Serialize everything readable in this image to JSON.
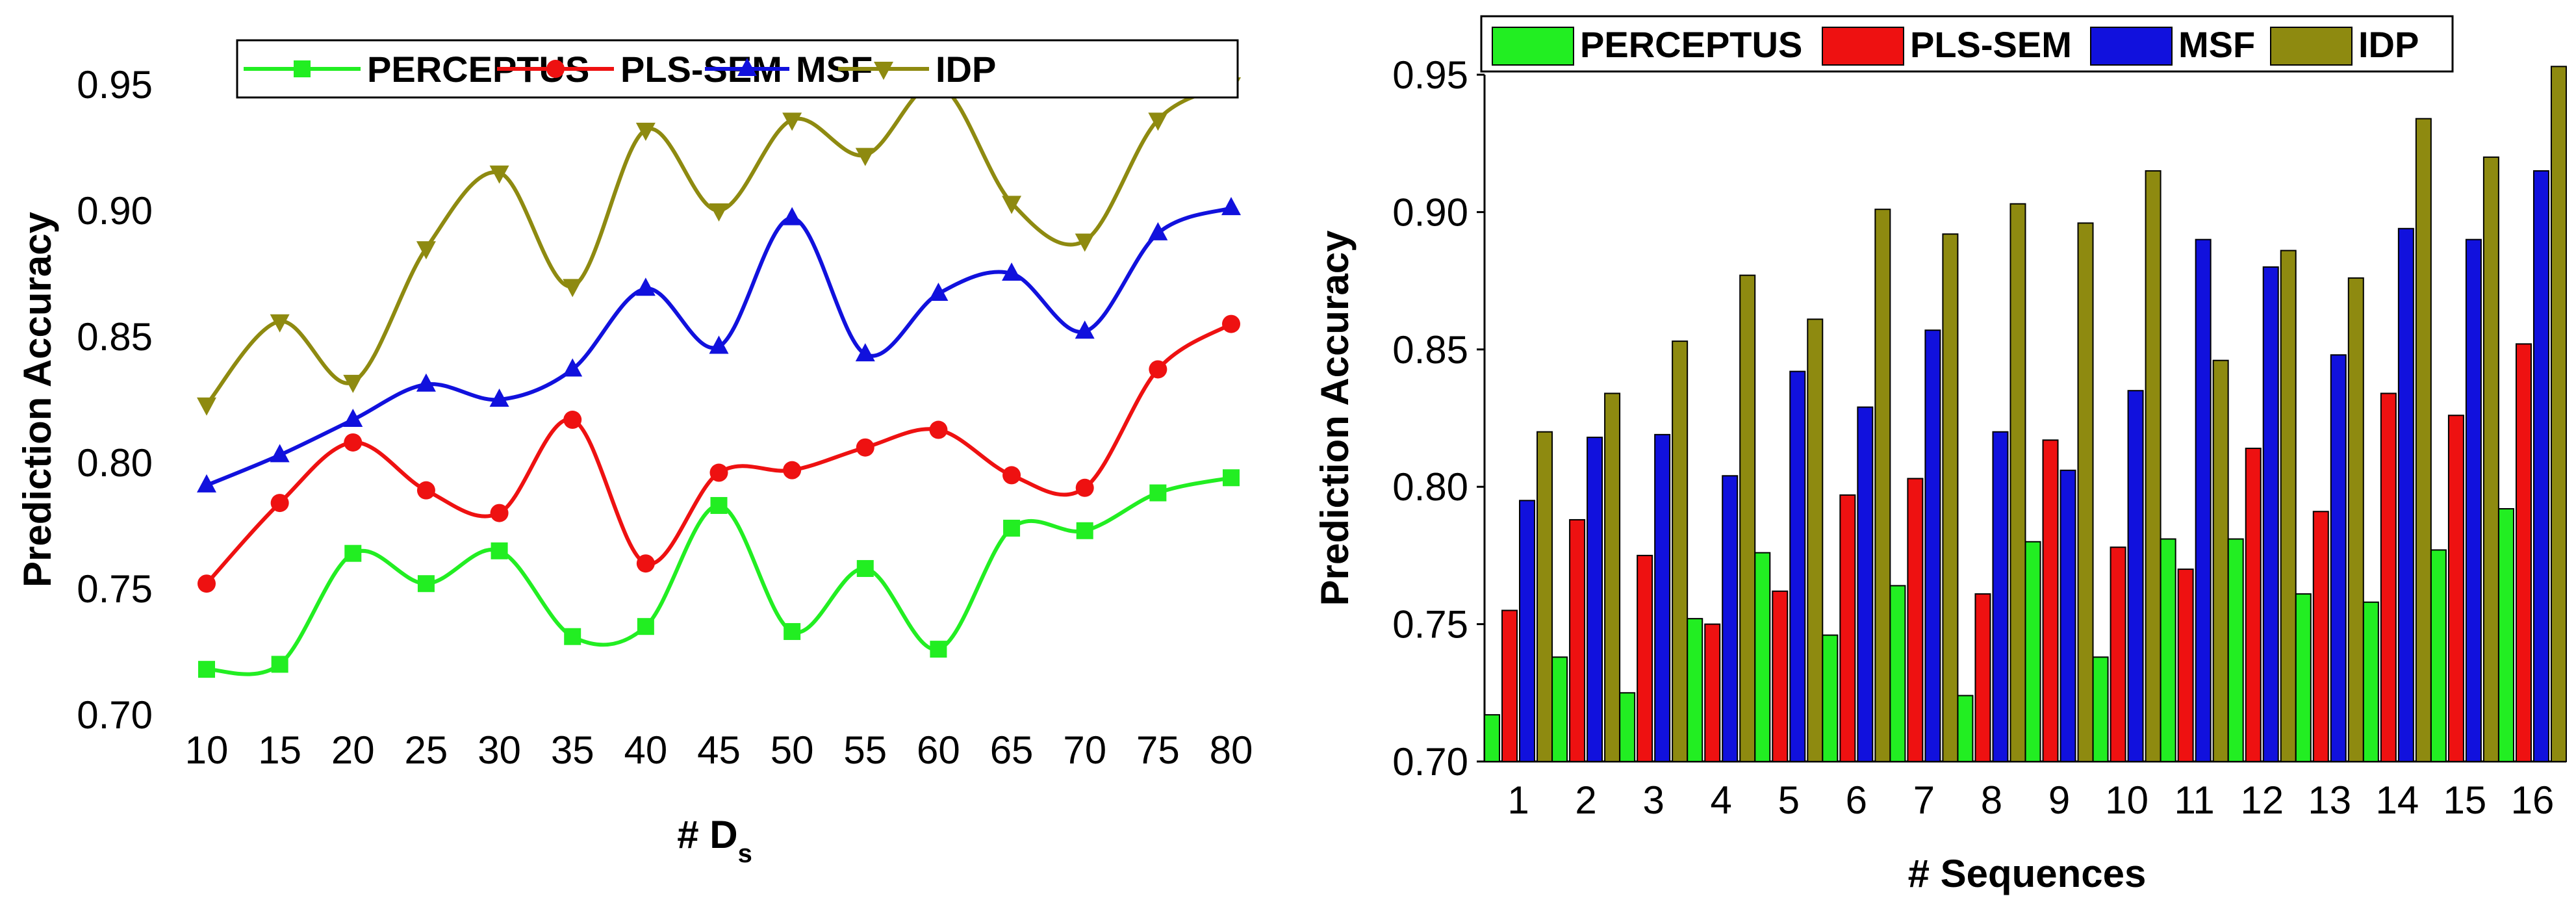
{
  "chart_data": [
    {
      "type": "line",
      "title": "",
      "xlabel": "# D",
      "xlabel_subscript": "s",
      "ylabel": "Prediction Accuracy",
      "ylim": [
        0.7,
        0.95
      ],
      "yticks": [
        "0.70",
        "0.75",
        "0.80",
        "0.85",
        "0.90",
        "0.95"
      ],
      "x": [
        "10",
        "15",
        "20",
        "25",
        "30",
        "35",
        "40",
        "45",
        "50",
        "55",
        "60",
        "65",
        "70",
        "75",
        "80"
      ],
      "legend_position": "top",
      "series": [
        {
          "name": "PERCEPTUS",
          "color": "#22ee22",
          "marker": "square",
          "values": [
            0.718,
            0.72,
            0.764,
            0.752,
            0.765,
            0.731,
            0.735,
            0.783,
            0.733,
            0.758,
            0.726,
            0.774,
            0.773,
            0.788,
            0.794
          ]
        },
        {
          "name": "PLS-SEM",
          "color": "#ee1111",
          "marker": "circle",
          "values": [
            0.752,
            0.784,
            0.808,
            0.789,
            0.78,
            0.817,
            0.76,
            0.796,
            0.797,
            0.806,
            0.813,
            0.795,
            0.79,
            0.837,
            0.855
          ]
        },
        {
          "name": "MSF",
          "color": "#1111dd",
          "marker": "triangle-up",
          "values": [
            0.791,
            0.803,
            0.817,
            0.831,
            0.825,
            0.837,
            0.869,
            0.846,
            0.897,
            0.843,
            0.867,
            0.875,
            0.852,
            0.891,
            0.901
          ]
        },
        {
          "name": "IDP",
          "color": "#8e8a10",
          "marker": "triangle-down",
          "values": [
            0.823,
            0.856,
            0.832,
            0.885,
            0.915,
            0.87,
            0.932,
            0.9,
            0.936,
            0.922,
            0.95,
            0.903,
            0.888,
            0.936,
            0.95
          ]
        }
      ]
    },
    {
      "type": "bar",
      "title": "",
      "xlabel": "# Sequences",
      "ylabel": "Prediction Accuracy",
      "ylim": [
        0.7,
        0.95
      ],
      "yticks": [
        "0.70",
        "0.75",
        "0.80",
        "0.85",
        "0.90",
        "0.95"
      ],
      "categories": [
        "1",
        "2",
        "3",
        "4",
        "5",
        "6",
        "7",
        "8",
        "9",
        "10",
        "11",
        "12",
        "13",
        "14",
        "15",
        "16"
      ],
      "legend_position": "top",
      "series": [
        {
          "name": "PERCEPTUS",
          "color": "#22ee22",
          "values": [
            0.717,
            0.738,
            0.725,
            0.752,
            0.776,
            0.746,
            0.764,
            0.724,
            0.78,
            0.738,
            0.781,
            0.781,
            0.761,
            0.758,
            0.777,
            0.792
          ]
        },
        {
          "name": "PLS-SEM",
          "color": "#ee1111",
          "values": [
            0.755,
            0.788,
            0.775,
            0.75,
            0.762,
            0.797,
            0.803,
            0.761,
            0.817,
            0.778,
            0.77,
            0.814,
            0.791,
            0.834,
            0.826,
            0.852
          ]
        },
        {
          "name": "MSF",
          "color": "#1111dd",
          "values": [
            0.795,
            0.818,
            0.819,
            0.804,
            0.842,
            0.829,
            0.857,
            0.82,
            0.806,
            0.835,
            0.89,
            0.88,
            0.848,
            0.894,
            0.89,
            0.915
          ]
        },
        {
          "name": "IDP",
          "color": "#8e8a10",
          "values": [
            0.82,
            0.834,
            0.853,
            0.877,
            0.861,
            0.901,
            0.892,
            0.903,
            0.896,
            0.915,
            0.846,
            0.886,
            0.876,
            0.934,
            0.92,
            0.953
          ]
        }
      ]
    }
  ]
}
